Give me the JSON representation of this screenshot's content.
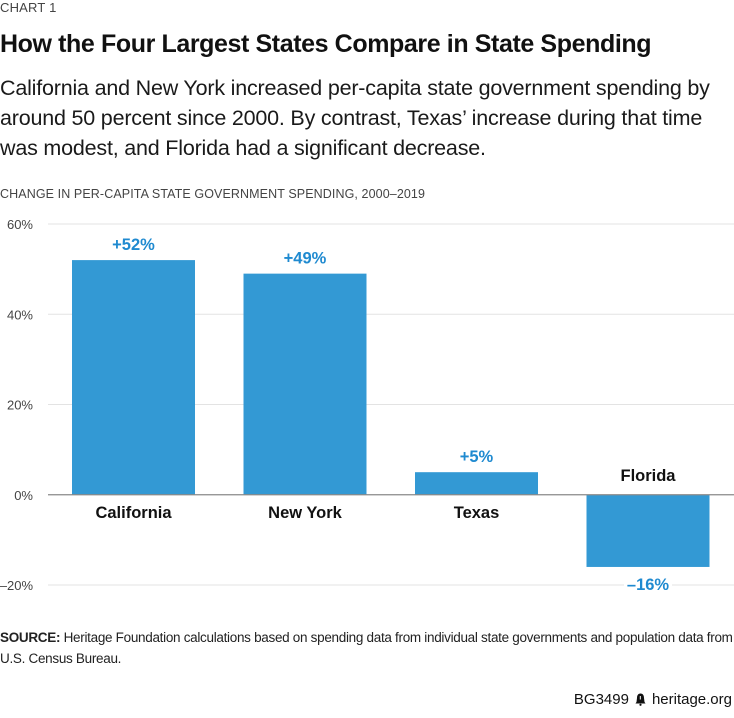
{
  "header": {
    "kicker": "CHART 1",
    "title": "How the Four Largest States Compare in State Spending",
    "subtitle": "California and New York increased per-capita state government spending by around 50 percent since 2000. By contrast, Texas’ increase during that time was modest, and Florida had a significant decrease."
  },
  "chart_data": {
    "type": "bar",
    "title": "CHANGE IN PER-CAPITA STATE GOVERNMENT SPENDING, 2000–2019",
    "xlabel": "",
    "ylabel": "",
    "categories": [
      "California",
      "New York",
      "Texas",
      "Florida"
    ],
    "values": [
      52,
      49,
      5,
      -16
    ],
    "data_labels": [
      "+52%",
      "+49%",
      "+5%",
      "–16%"
    ],
    "ylim": [
      -20,
      60
    ],
    "yticks": [
      60,
      40,
      20,
      0,
      -20
    ],
    "ytick_labels": [
      "60%",
      "40%",
      "20%",
      "0%",
      "–20%"
    ],
    "grid": true,
    "legend": "none",
    "bar_color": "#3399d4",
    "label_color": "#1f8ad0"
  },
  "footer": {
    "source_label": "SOURCE:",
    "source_text": " Heritage Foundation calculations based on spending data from individual state governments and population data from U.S. Census Bureau.",
    "report_id": "BG3499",
    "logo_icon": "liberty-bell-icon",
    "site": "heritage.org"
  }
}
